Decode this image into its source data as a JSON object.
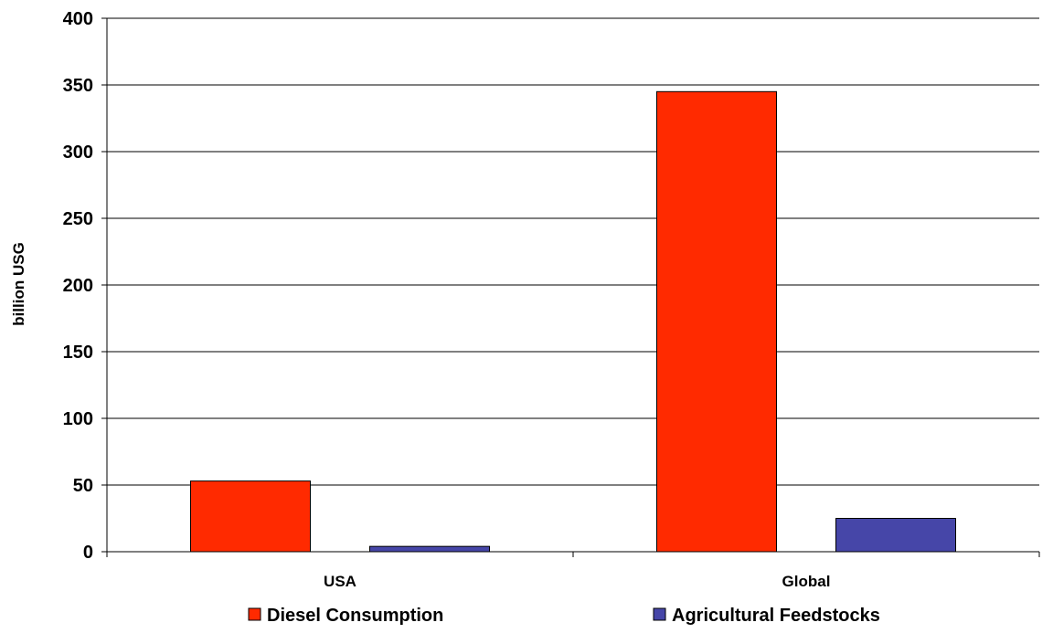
{
  "chart_data": {
    "type": "bar",
    "title": "",
    "xlabel": "",
    "ylabel": "billion USG",
    "categories": [
      "USA",
      "Global"
    ],
    "series": [
      {
        "name": "Diesel Consumption",
        "color": "#ff2a00",
        "values": [
          53,
          345
        ]
      },
      {
        "name": "Agricultural Feedstocks",
        "color": "#4646a8",
        "values": [
          4,
          25
        ]
      }
    ],
    "ylim": [
      0,
      400
    ],
    "yticks": [
      "0",
      "50",
      "100",
      "150",
      "200",
      "250",
      "300",
      "350",
      "400"
    ],
    "grid": true,
    "legend_position": "bottom"
  }
}
